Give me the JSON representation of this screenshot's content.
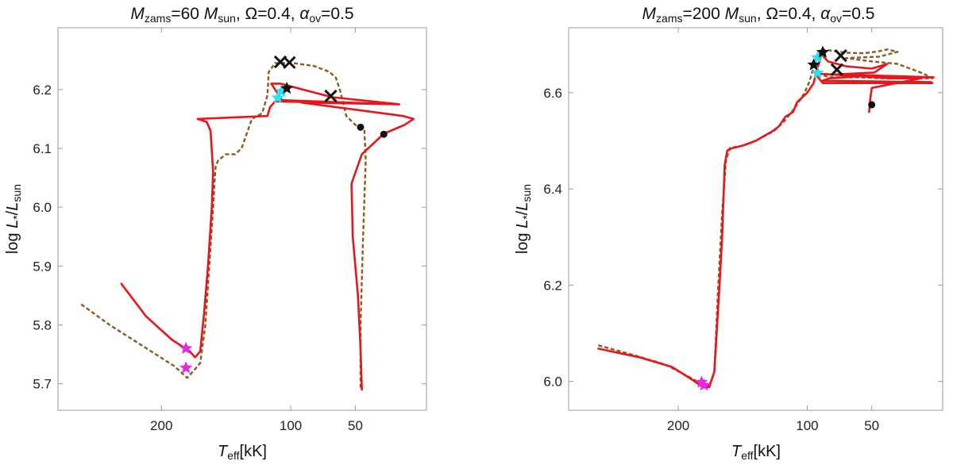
{
  "colors": {
    "red_track": "#e8151b",
    "dashed_track": "#8b5a1f",
    "magenta_star": "#e628e6",
    "cyan_star": "#27e3ee",
    "black": "#111111",
    "frame": "#9a9a9a"
  },
  "chart_data": [
    {
      "type": "line",
      "title": {
        "m": "M",
        "m_sub": "zams",
        "eq1": "=60 ",
        "m2": "M",
        "m2_sub": "sun",
        "rest": ", Ω=0.4, ",
        "alpha": "α",
        "alpha_sub": "ov",
        "eq2": "=0.5"
      },
      "xlabel": {
        "t": "T",
        "t_sub": "eff",
        "unit": "[kK]"
      },
      "ylabel": {
        "pre": "log ",
        "l": "L",
        "l_sub": "*",
        "slash": "/",
        "l2": "L",
        "l2_sub": "sun"
      },
      "x_reversed": true,
      "xlim": [
        280,
        -5
      ],
      "ylim": [
        5.655,
        6.305
      ],
      "xticks": [
        200,
        100,
        50
      ],
      "xtick_labels": [
        "200",
        "100",
        "50"
      ],
      "yticks": [
        5.7,
        5.8,
        5.9,
        6.0,
        6.1,
        6.2
      ],
      "ytick_labels": [
        "5.7",
        "5.8",
        "5.9",
        "6.0",
        "6.1",
        "6.2"
      ],
      "series": [
        {
          "name": "red-solid",
          "style": "solid",
          "points": [
            [
              231,
              5.87
            ],
            [
              212,
              5.815
            ],
            [
              192,
              5.775
            ],
            [
              178,
              5.755
            ],
            [
              174,
              5.745
            ],
            [
              170,
              5.755
            ],
            [
              167,
              5.82
            ],
            [
              164,
              5.9
            ],
            [
              161,
              6.0
            ],
            [
              160,
              6.06
            ],
            [
              162,
              6.13
            ],
            [
              165,
              6.145
            ],
            [
              172,
              6.15
            ],
            [
              118,
              6.155
            ],
            [
              116,
              6.17
            ],
            [
              112,
              6.18
            ],
            [
              18,
              6.175
            ],
            [
              107,
              6.182
            ],
            [
              110,
              6.193
            ],
            [
              115,
              6.21
            ],
            [
              108,
              6.21
            ],
            [
              68,
              6.187
            ],
            [
              16,
              6.175
            ],
            [
              92,
              6.178
            ],
            [
              13,
              6.155
            ],
            [
              5,
              6.15
            ],
            [
              12,
              6.14
            ],
            [
              28,
              6.125
            ],
            [
              45,
              6.09
            ],
            [
              53,
              6.04
            ],
            [
              52,
              5.95
            ],
            [
              48,
              5.85
            ],
            [
              46,
              5.76
            ],
            [
              45,
              5.69
            ]
          ]
        },
        {
          "name": "brown-dashed",
          "style": "dashed",
          "points": [
            [
              262,
              5.835
            ],
            [
              240,
              5.8
            ],
            [
              215,
              5.765
            ],
            [
              190,
              5.73
            ],
            [
              180,
              5.71
            ],
            [
              170,
              5.735
            ],
            [
              166,
              5.8
            ],
            [
              163,
              5.9
            ],
            [
              160,
              6.0
            ],
            [
              159,
              6.04
            ],
            [
              158,
              6.07
            ],
            [
              156,
              6.08
            ],
            [
              150,
              6.09
            ],
            [
              143,
              6.09
            ],
            [
              138,
              6.1
            ],
            [
              130,
              6.15
            ],
            [
              122,
              6.16
            ],
            [
              118,
              6.19
            ],
            [
              117,
              6.23
            ],
            [
              112,
              6.245
            ],
            [
              98,
              6.245
            ],
            [
              82,
              6.24
            ],
            [
              70,
              6.23
            ],
            [
              65,
              6.22
            ],
            [
              62,
              6.2
            ],
            [
              57,
              6.155
            ],
            [
              50,
              6.14
            ],
            [
              46,
              6.135
            ],
            [
              43,
              6.13
            ],
            [
              42,
              6.08
            ],
            [
              44,
              5.95
            ],
            [
              46,
              5.8
            ],
            [
              46,
              5.69
            ]
          ]
        }
      ],
      "markers": [
        {
          "kind": "star",
          "color": "magenta",
          "x": 181,
          "y": 5.76
        },
        {
          "kind": "star",
          "color": "magenta",
          "x": 181,
          "y": 5.727
        },
        {
          "kind": "star",
          "color": "cyan",
          "x": 110,
          "y": 6.186
        },
        {
          "kind": "star",
          "color": "cyan",
          "x": 107,
          "y": 6.197
        },
        {
          "kind": "star",
          "color": "black",
          "x": 103,
          "y": 6.202
        },
        {
          "kind": "cross",
          "color": "black",
          "x": 108,
          "y": 6.247
        },
        {
          "kind": "cross",
          "color": "black",
          "x": 101,
          "y": 6.246
        },
        {
          "kind": "cross",
          "color": "black",
          "x": 69,
          "y": 6.189
        },
        {
          "kind": "dot",
          "color": "black",
          "x": 46,
          "y": 6.136
        },
        {
          "kind": "dot",
          "color": "black",
          "x": 28,
          "y": 6.124
        }
      ]
    },
    {
      "type": "line",
      "title": {
        "m": "M",
        "m_sub": "zams",
        "eq1": "=200 ",
        "m2": "M",
        "m2_sub": "sun",
        "rest": ", Ω=0.4, ",
        "alpha": "α",
        "alpha_sub": "ov",
        "eq2": "=0.5"
      },
      "xlabel": {
        "t": "T",
        "t_sub": "eff",
        "unit": "[kK]"
      },
      "ylabel": {
        "pre": "log ",
        "l": "L",
        "l_sub": "*",
        "slash": "/",
        "l2": "L",
        "l2_sub": "sun"
      },
      "x_reversed": true,
      "xlim": [
        285,
        -5
      ],
      "ylim": [
        5.94,
        6.735
      ],
      "xticks": [
        200,
        100,
        50
      ],
      "xtick_labels": [
        "200",
        "100",
        "50"
      ],
      "yticks": [
        6.0,
        6.2,
        6.4,
        6.6
      ],
      "ytick_labels": [
        "6.0",
        "6.2",
        "6.4",
        "6.6"
      ],
      "series": [
        {
          "name": "red-solid",
          "style": "solid",
          "points": [
            [
              262,
              6.068
            ],
            [
              230,
              6.05
            ],
            [
              205,
              6.03
            ],
            [
              190,
              6.005
            ],
            [
              182,
              5.99
            ],
            [
              176,
              5.988
            ],
            [
              172,
              6.02
            ],
            [
              168,
              6.2
            ],
            [
              166,
              6.3
            ],
            [
              164,
              6.45
            ],
            [
              162,
              6.48
            ],
            [
              158,
              6.485
            ],
            [
              150,
              6.49
            ],
            [
              140,
              6.5
            ],
            [
              127,
              6.52
            ],
            [
              122,
              6.53
            ],
            [
              117,
              6.55
            ],
            [
              111,
              6.56
            ],
            [
              108,
              6.58
            ],
            [
              104,
              6.59
            ],
            [
              100,
              6.6
            ],
            [
              95,
              6.62
            ],
            [
              93,
              6.645
            ],
            [
              91,
              6.66
            ],
            [
              89,
              6.68
            ],
            [
              84,
              6.665
            ],
            [
              70,
              6.655
            ],
            [
              50,
              6.65
            ],
            [
              38,
              6.66
            ],
            [
              48,
              6.642
            ],
            [
              78,
              6.638
            ],
            [
              2,
              6.632
            ],
            [
              60,
              6.634
            ],
            [
              83,
              6.63
            ],
            [
              88,
              6.625
            ],
            [
              4,
              6.622
            ],
            [
              3,
              6.62
            ],
            [
              88,
              6.62
            ],
            [
              94,
              6.64
            ],
            [
              35,
              6.63
            ],
            [
              12,
              6.63
            ],
            [
              50,
              6.61
            ],
            [
              51,
              6.59
            ],
            [
              52,
              6.56
            ]
          ]
        },
        {
          "name": "brown-dashed",
          "style": "dashed",
          "points": [
            [
              262,
              6.075
            ],
            [
              235,
              6.055
            ],
            [
              210,
              6.035
            ],
            [
              192,
              6.01
            ],
            [
              182,
              5.995
            ],
            [
              176,
              5.99
            ],
            [
              172,
              6.02
            ],
            [
              169,
              6.2
            ],
            [
              166,
              6.35
            ],
            [
              163,
              6.46
            ],
            [
              160,
              6.485
            ],
            [
              150,
              6.49
            ],
            [
              140,
              6.5
            ],
            [
              126,
              6.52
            ],
            [
              118,
              6.54
            ],
            [
              112,
              6.56
            ],
            [
              108,
              6.575
            ],
            [
              102,
              6.6
            ],
            [
              98,
              6.625
            ],
            [
              95,
              6.655
            ],
            [
              92,
              6.675
            ],
            [
              88,
              6.69
            ],
            [
              70,
              6.683
            ],
            [
              56,
              6.682
            ],
            [
              45,
              6.686
            ],
            [
              38,
              6.69
            ],
            [
              30,
              6.685
            ],
            [
              44,
              6.675
            ],
            [
              70,
              6.672
            ],
            [
              50,
              6.665
            ],
            [
              30,
              6.66
            ],
            [
              10,
              6.64
            ],
            [
              3,
              6.63
            ],
            [
              40,
              6.63
            ],
            [
              60,
              6.632
            ],
            [
              83,
              6.632
            ],
            [
              92,
              6.64
            ]
          ]
        }
      ],
      "markers": [
        {
          "kind": "star",
          "color": "magenta",
          "x": 182,
          "y": 5.998
        },
        {
          "kind": "star",
          "color": "magenta",
          "x": 180,
          "y": 5.992
        },
        {
          "kind": "star",
          "color": "cyan",
          "x": 92,
          "y": 6.641
        },
        {
          "kind": "star",
          "color": "cyan",
          "x": 92,
          "y": 6.673
        },
        {
          "kind": "star",
          "color": "black",
          "x": 95,
          "y": 6.658
        },
        {
          "kind": "star",
          "color": "black",
          "x": 88,
          "y": 6.684
        },
        {
          "kind": "cross",
          "color": "black",
          "x": 74,
          "y": 6.677
        },
        {
          "kind": "cross",
          "color": "black",
          "x": 77,
          "y": 6.648
        },
        {
          "kind": "dot",
          "color": "black",
          "x": 50,
          "y": 6.575
        }
      ]
    }
  ]
}
